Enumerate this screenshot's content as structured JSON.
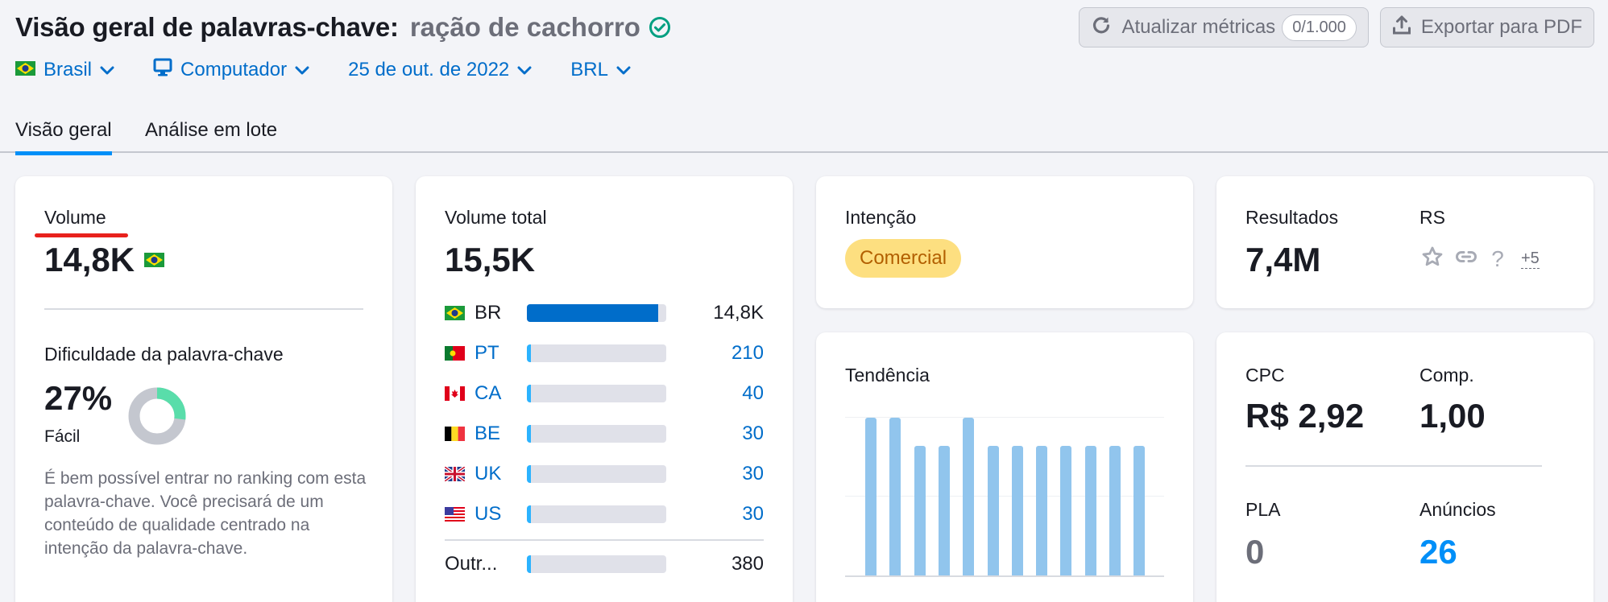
{
  "header": {
    "title": "Visão geral de palavras-chave:",
    "keyword": "ração de cachorro",
    "verified_icon": "check-circle-icon",
    "refresh_button": {
      "label": "Atualizar métricas",
      "count": "0/1.000",
      "icon": "refresh-icon"
    },
    "export_button": {
      "label": "Exportar para PDF",
      "icon": "upload-icon"
    }
  },
  "filters": [
    {
      "label": "Brasil",
      "icon": "flag-br-icon"
    },
    {
      "label": "Computador",
      "icon": "desktop-icon"
    },
    {
      "label": "25 de out. de 2022",
      "icon": ""
    },
    {
      "label": "BRL",
      "icon": ""
    }
  ],
  "tabs": [
    {
      "label": "Visão geral",
      "active": true
    },
    {
      "label": "Análise em lote",
      "active": false
    }
  ],
  "volume_card": {
    "label": "Volume",
    "value": "14,8K",
    "flag": "flag-br-icon",
    "kd_label": "Dificuldade da palavra-chave",
    "kd_value": "27%",
    "kd_percent": 27,
    "kd_level": "Fácil",
    "kd_description": "É bem possível entrar no ranking com esta palavra-chave. Você precisará de um conteúdo de qualidade centrado na intenção da palavra-chave.",
    "colors": {
      "kd_easy": "#59ddaa",
      "kd_rest": "#c4c7cf",
      "annotation_underline": "#e8211c"
    }
  },
  "global_volume_card": {
    "label": "Volume total",
    "value": "15,5K",
    "countries": [
      {
        "code": "BR",
        "value": "14,8K",
        "percent": 96,
        "linked": false
      },
      {
        "code": "PT",
        "value": "210",
        "percent": 2,
        "linked": true
      },
      {
        "code": "CA",
        "value": "40",
        "percent": 2,
        "linked": true
      },
      {
        "code": "BE",
        "value": "30",
        "percent": 2,
        "linked": true
      },
      {
        "code": "UK",
        "value": "30",
        "percent": 2,
        "linked": true
      },
      {
        "code": "US",
        "value": "30",
        "percent": 2,
        "linked": true
      }
    ],
    "other": {
      "label": "Outr...",
      "value": "380",
      "percent": 2
    },
    "colors": {
      "primary_bar": "#006dca",
      "small_bar": "#2bb3ff",
      "track": "#e0e1e9"
    }
  },
  "intent_card": {
    "label": "Intenção",
    "badge": "Comercial",
    "colors": {
      "badge_bg": "#fddf80",
      "badge_text": "#b25f00"
    }
  },
  "trend_card": {
    "label": "Tendência"
  },
  "results_card": {
    "results_label": "Resultados",
    "results_value": "7,4M",
    "serp_label": "RS",
    "serp_icons": [
      "star-icon",
      "link-icon",
      "question-icon"
    ],
    "serp_more": "+5"
  },
  "cpc_card": {
    "cpc_label": "CPC",
    "cpc_value": "R$ 2,92",
    "comp_label": "Comp.",
    "comp_value": "1,00",
    "pla_label": "PLA",
    "pla_value": "0",
    "ads_label": "Anúncios",
    "ads_value": "26",
    "colors": {
      "pla": "#6c6e79",
      "ads": "#008ff8"
    }
  },
  "chart_data": {
    "type": "bar",
    "title": "Tendência",
    "categories": [
      "1",
      "2",
      "3",
      "4",
      "5",
      "6",
      "7",
      "8",
      "9",
      "10",
      "11",
      "12"
    ],
    "values": [
      100,
      100,
      82,
      82,
      100,
      82,
      82,
      82,
      82,
      82,
      82,
      82
    ],
    "xlabel": "",
    "ylabel": "",
    "ylim": [
      0,
      100
    ],
    "grid": true,
    "color": "#91c5ed"
  }
}
